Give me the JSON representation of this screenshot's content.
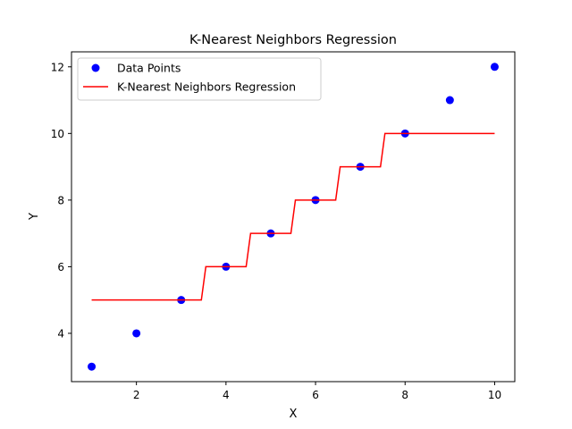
{
  "chart_data": {
    "type": "scatter",
    "title": "K-Nearest Neighbors Regression",
    "xlabel": "X",
    "ylabel": "Y",
    "xlim": [
      0.55,
      10.45
    ],
    "ylim": [
      2.55,
      12.45
    ],
    "xticks": [
      2,
      4,
      6,
      8,
      10
    ],
    "yticks": [
      4,
      6,
      8,
      10,
      12
    ],
    "grid": false,
    "legend_position": "top-left",
    "series": [
      {
        "name": "Data Points",
        "kind": "scatter",
        "color": "#0000ff",
        "x": [
          1,
          2,
          3,
          4,
          5,
          6,
          7,
          8,
          9,
          10
        ],
        "y": [
          3,
          4,
          5,
          6,
          7,
          8,
          9,
          10,
          11,
          12
        ]
      },
      {
        "name": "K-Nearest Neighbors Regression",
        "kind": "line",
        "color": "#ff0000",
        "x": [
          1,
          3.45,
          3.55,
          4.45,
          4.55,
          5.45,
          5.55,
          6.45,
          6.55,
          7.45,
          7.55,
          10
        ],
        "y": [
          5,
          5,
          6,
          6,
          7,
          7,
          8,
          8,
          9,
          9,
          10,
          10
        ]
      }
    ]
  }
}
